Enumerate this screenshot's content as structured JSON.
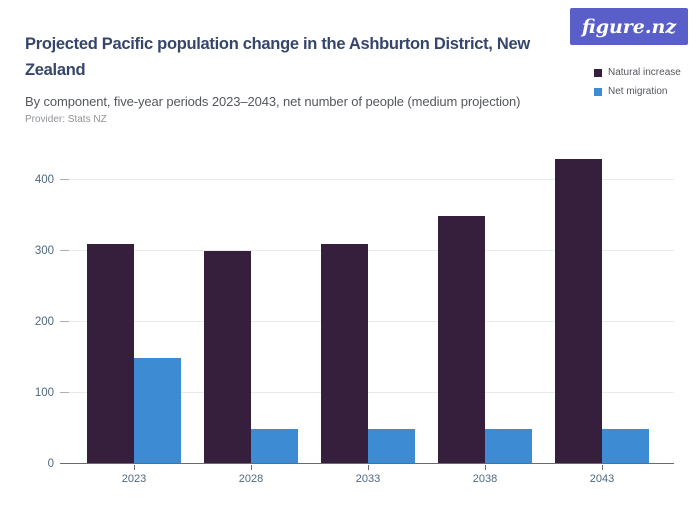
{
  "header": {
    "title": "Projected Pacific population change in the Ashburton District, New Zealand",
    "subtitle": "By component, five-year periods 2023–2043, net number of people (medium projection)",
    "provider": "Provider: Stats NZ",
    "logo_text": "figure.nz"
  },
  "colors": {
    "brand_purple": "#5A5EC8",
    "title_navy": "#36466B",
    "axis_label": "#4F6880",
    "grid_line": "#E9EAEB",
    "axis_line": "#6B6B6B",
    "natural_increase": "#351F3D",
    "net_migration": "#3D8CD3"
  },
  "chart_data": {
    "type": "bar",
    "title": "Projected Pacific population change in the Ashburton District, New Zealand",
    "subtitle": "By component, five-year periods 2023–2043, net number of people (medium projection)",
    "categories": [
      "2023",
      "2028",
      "2033",
      "2038",
      "2043"
    ],
    "series": [
      {
        "name": "Natural increase",
        "color": "#351F3D",
        "values": [
          310,
          300,
          310,
          350,
          430
        ]
      },
      {
        "name": "Net migration",
        "color": "#3D8CD3",
        "values": [
          150,
          50,
          50,
          50,
          50
        ]
      }
    ],
    "xlabel": "",
    "ylabel": "",
    "ylim": [
      0,
      450
    ],
    "yticks": [
      0,
      100,
      200,
      300,
      400
    ],
    "grid": "horizontal",
    "legend_position": "top-right"
  }
}
